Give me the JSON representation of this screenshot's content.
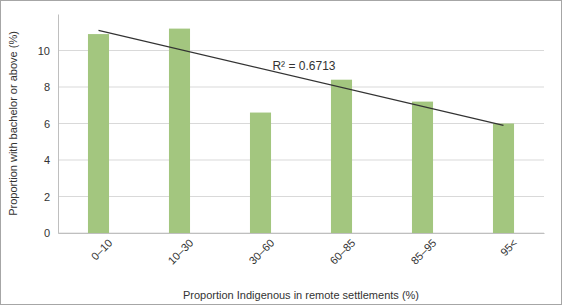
{
  "chart_data": {
    "type": "bar",
    "x_label": "Proportion Indigenous in remote settlements (%)",
    "y_label": "Proportion with bachelor or above (%)",
    "categories": [
      "0–10",
      "10–30",
      "30–60",
      "60–85",
      "85–95",
      "95<"
    ],
    "values": [
      10.9,
      11.2,
      6.6,
      8.4,
      7.2,
      6.0
    ],
    "color": "#a3c67f",
    "ylim": [
      0,
      12
    ],
    "yticks": [
      0,
      2,
      4,
      6,
      8,
      10
    ],
    "grid": true,
    "trend_line": [
      11.1,
      5.9
    ],
    "annotation": "R² = 0.6713"
  }
}
